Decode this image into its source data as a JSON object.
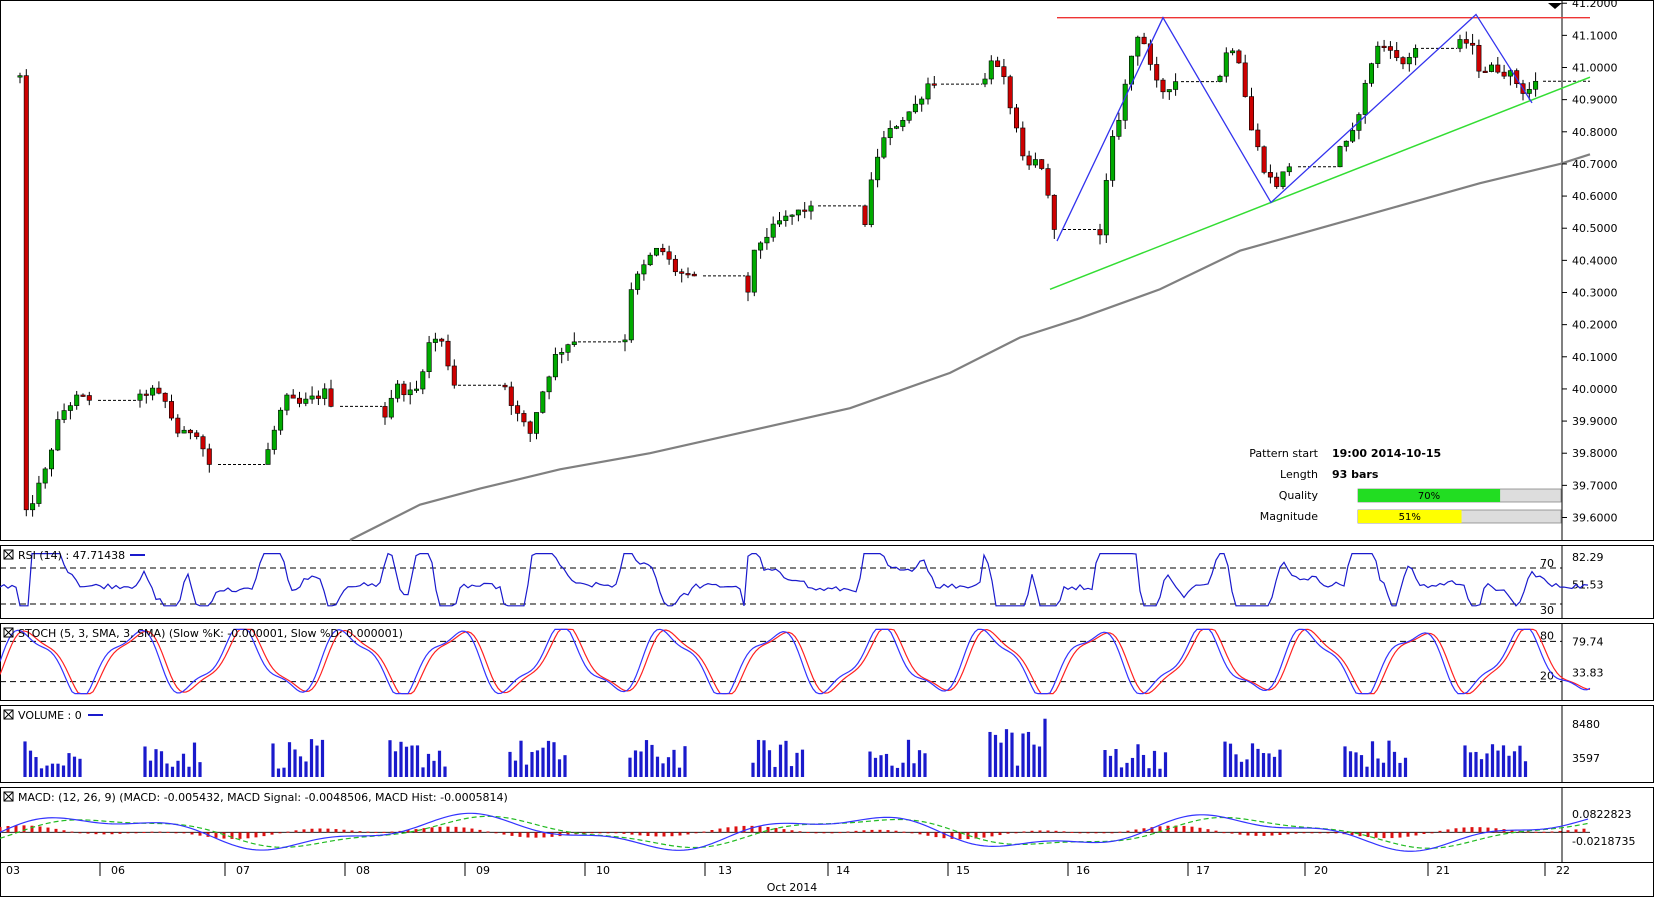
{
  "chart_data": {
    "type": "candlestick",
    "price": {
      "y_ticks": [
        "41.2000",
        "41.1000",
        "41.0000",
        "40.9000",
        "40.8000",
        "40.7000",
        "40.6000",
        "40.5000",
        "40.4000",
        "40.3000",
        "40.2000",
        "40.1000",
        "40.0000",
        "39.9000",
        "39.8000",
        "39.7000",
        "39.6000"
      ],
      "ylim": [
        39.53,
        41.21
      ],
      "resistance_level": 41.155,
      "support_line": [
        [
          1050,
          40.31
        ],
        [
          1590,
          40.97
        ]
      ],
      "zigzag_pattern": [
        [
          1057,
          40.46
        ],
        [
          1163,
          41.155
        ],
        [
          1271,
          40.58
        ],
        [
          1476,
          41.165
        ],
        [
          1532,
          40.89
        ]
      ],
      "moving_average": [
        [
          350,
          39.53
        ],
        [
          420,
          39.64
        ],
        [
          480,
          39.69
        ],
        [
          560,
          39.75
        ],
        [
          650,
          39.8
        ],
        [
          750,
          39.87
        ],
        [
          850,
          39.94
        ],
        [
          950,
          40.05
        ],
        [
          1020,
          40.16
        ],
        [
          1080,
          40.22
        ],
        [
          1160,
          40.31
        ],
        [
          1240,
          40.43
        ],
        [
          1320,
          40.5
        ],
        [
          1400,
          40.57
        ],
        [
          1480,
          40.64
        ],
        [
          1560,
          40.7
        ],
        [
          1590,
          40.73
        ]
      ]
    },
    "pattern_info": {
      "rows": [
        {
          "label": "Pattern start",
          "value": "19:00 2014-10-15"
        },
        {
          "label": "Length",
          "value": "93 bars"
        },
        {
          "label": "Quality",
          "value": "70%",
          "fraction": 0.7,
          "color": "#22dd22"
        },
        {
          "label": "Magnitude",
          "value": "51%",
          "fraction": 0.51,
          "color": "#ffff00"
        }
      ]
    },
    "rsi": {
      "label": "RSI (14) : 47.71438",
      "right_ticks": [
        "82.29",
        "51.53"
      ],
      "level_labels": [
        "70",
        "30"
      ],
      "levels": [
        70,
        30
      ]
    },
    "stoch": {
      "label": "STOCH (5, 3, SMA, 3, SMA) (Slow %K: -0.000001, Slow %D: 0.000001)",
      "right_ticks": [
        "79.74",
        "33.83"
      ],
      "level_labels": [
        "80",
        "20"
      ],
      "levels": [
        80,
        20
      ]
    },
    "volume": {
      "label": "VOLUME : 0",
      "right_ticks": [
        "8480",
        "3597"
      ]
    },
    "macd": {
      "label": "MACD: (12, 26, 9) (MACD: -0.005432, MACD Signal: -0.0048506, MACD Hist: -0.0005814)",
      "right_ticks": [
        "0.0822823",
        "-0.0218735"
      ]
    },
    "x_axis": {
      "day_labels": [
        "03",
        "06",
        "07",
        "08",
        "09",
        "10",
        "13",
        "14",
        "15",
        "16",
        "17",
        "20",
        "21",
        "22"
      ],
      "month_label": "Oct 2014"
    },
    "colors": {
      "up_candle": "#00aa00",
      "down_candle": "#cc0000",
      "moving_average": "#808080",
      "support": "#33dd33",
      "resistance": "#ee3333",
      "pattern": "#3333ee",
      "rsi": "#1a1acc",
      "stoch_k": "#3333ff",
      "stoch_d": "#ff2222",
      "volume": "#1a1acc",
      "macd": "#3333ff",
      "macd_signal": "#22bb22",
      "macd_hist": "#dd1111"
    }
  }
}
